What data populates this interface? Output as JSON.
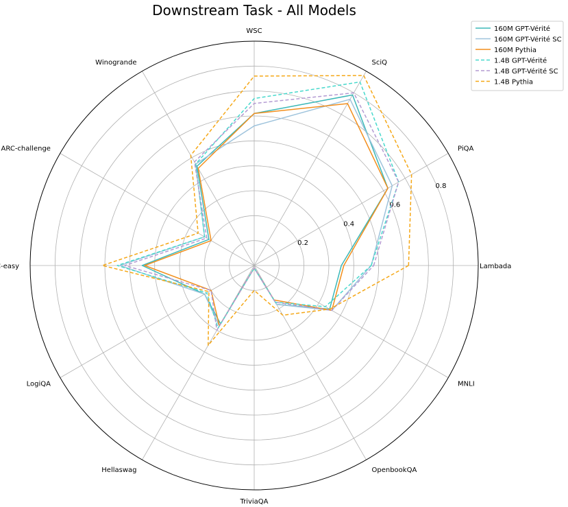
{
  "chart_data": {
    "type": "radar",
    "title": "Downstream Task - All Models",
    "axes": [
      "Lambada",
      "PiQA",
      "SciQ",
      "WSC",
      "Winogrande",
      "ARC-challenge",
      "ARC-easy",
      "LogiQA",
      "Hellaswag",
      "TriviaQA",
      "OpenbookQA",
      "MNLI"
    ],
    "rticks": [
      0.2,
      0.4,
      0.6,
      0.8
    ],
    "rticklabels": [
      "0.2",
      "0.4",
      "0.6",
      "0.8"
    ],
    "rlim": [
      0,
      0.9
    ],
    "grid": true,
    "legend_position": "top-right",
    "series": [
      {
        "name": "160M GPT-Vérité",
        "color": "#3cb8b8",
        "dash": "solid",
        "values": [
          0.35,
          0.62,
          0.79,
          0.61,
          0.46,
          0.21,
          0.45,
          0.23,
          0.27,
          0.01,
          0.18,
          0.35
        ]
      },
      {
        "name": "160M GPT-Vérité SC",
        "color": "#9ec3dc",
        "dash": "solid",
        "values": [
          0.47,
          0.64,
          0.77,
          0.56,
          0.47,
          0.23,
          0.54,
          0.23,
          0.28,
          0.01,
          0.18,
          0.36
        ]
      },
      {
        "name": "160M Pythia",
        "color": "#f28e1c",
        "dash": "solid",
        "values": [
          0.36,
          0.62,
          0.75,
          0.61,
          0.45,
          0.2,
          0.44,
          0.2,
          0.28,
          0.01,
          0.16,
          0.36
        ]
      },
      {
        "name": "1.4B GPT-Vérité",
        "color": "#46d8cc",
        "dash": "dashed",
        "values": [
          0.47,
          0.67,
          0.85,
          0.67,
          0.47,
          0.23,
          0.55,
          0.22,
          0.29,
          0.01,
          0.17,
          0.33
        ]
      },
      {
        "name": "1.4B GPT-Vérité SC",
        "color": "#b39ad2",
        "dash": "dashed",
        "values": [
          0.48,
          0.67,
          0.8,
          0.65,
          0.48,
          0.22,
          0.52,
          0.2,
          0.3,
          0.01,
          0.17,
          0.36
        ]
      },
      {
        "name": "1.4B Pythia",
        "color": "#f5a716",
        "dash": "dashed",
        "values": [
          0.62,
          0.73,
          0.88,
          0.76,
          0.51,
          0.26,
          0.61,
          0.21,
          0.37,
          0.1,
          0.23,
          0.35
        ]
      }
    ]
  }
}
